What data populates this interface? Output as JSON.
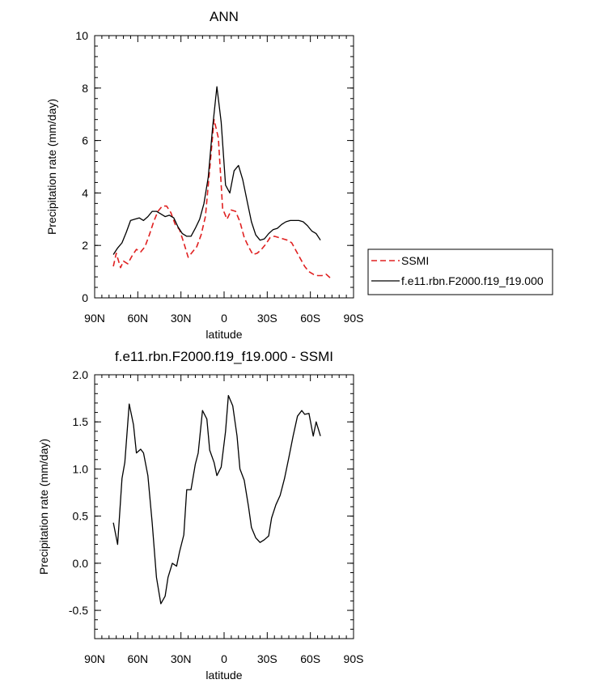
{
  "chart_data": [
    {
      "type": "line",
      "title": "ANN",
      "xlabel": "latitude",
      "ylabel": "Precipitation rate (mm/day)",
      "xlim": [
        90,
        -90
      ],
      "ylim": [
        0,
        10
      ],
      "x_tick_labels": [
        "90N",
        "60N",
        "30N",
        "0",
        "30S",
        "60S",
        "90S"
      ],
      "y_tick_labels": [
        "0",
        "2",
        "4",
        "6",
        "8",
        "10"
      ],
      "legend": {
        "placement": "right",
        "entries": [
          "SSMI",
          "f.e11.rbn.F2000.f19_f19.000"
        ]
      },
      "series": [
        {
          "name": "SSMI",
          "color": "#e02020",
          "dash": "dashed",
          "x": [
            77,
            75,
            72,
            70,
            67,
            64,
            61,
            58,
            55,
            52,
            49,
            46,
            43,
            40,
            37,
            34,
            31,
            28,
            25,
            22,
            19,
            16,
            13,
            10,
            7,
            4,
            1,
            -2,
            -5,
            -8,
            -11,
            -14,
            -17,
            -20,
            -23,
            -26,
            -29,
            -32,
            -35,
            -38,
            -41,
            -44,
            -47,
            -50,
            -53,
            -56,
            -59,
            -62,
            -65,
            -68,
            -71,
            -74
          ],
          "values": [
            1.2,
            1.7,
            1.15,
            1.4,
            1.3,
            1.6,
            1.85,
            1.75,
            1.95,
            2.4,
            2.9,
            3.3,
            3.5,
            3.5,
            3.25,
            2.8,
            2.6,
            2.1,
            1.55,
            1.75,
            1.95,
            2.4,
            3.1,
            4.9,
            6.8,
            6.1,
            3.4,
            3.0,
            3.35,
            3.3,
            2.9,
            2.3,
            1.95,
            1.65,
            1.7,
            1.85,
            2.05,
            2.3,
            2.35,
            2.3,
            2.25,
            2.2,
            2.1,
            1.8,
            1.5,
            1.2,
            1.0,
            0.9,
            0.85,
            0.85,
            0.9,
            0.75
          ]
        },
        {
          "name": "f.e11.rbn.F2000.f19_f19.000",
          "color": "#000000",
          "dash": "solid",
          "x": [
            77,
            74,
            71,
            68,
            65,
            62,
            59,
            56,
            53,
            50,
            47,
            44,
            41,
            38,
            35,
            32,
            29,
            26,
            23,
            20,
            17,
            14,
            11,
            8,
            5,
            2,
            -1,
            -4,
            -7,
            -10,
            -13,
            -16,
            -19,
            -22,
            -25,
            -28,
            -31,
            -34,
            -37,
            -40,
            -43,
            -46,
            -49,
            -52,
            -55,
            -58,
            -61,
            -64,
            -67
          ],
          "values": [
            1.65,
            1.9,
            2.1,
            2.5,
            2.95,
            3.0,
            3.05,
            2.95,
            3.1,
            3.3,
            3.3,
            3.2,
            3.1,
            3.15,
            3.05,
            2.7,
            2.45,
            2.35,
            2.35,
            2.65,
            3.0,
            3.6,
            4.6,
            6.5,
            8.05,
            6.7,
            4.3,
            4.0,
            4.85,
            5.05,
            4.5,
            3.7,
            2.9,
            2.4,
            2.2,
            2.25,
            2.45,
            2.6,
            2.65,
            2.8,
            2.9,
            2.95,
            2.95,
            2.95,
            2.9,
            2.75,
            2.55,
            2.45,
            2.2
          ]
        }
      ]
    },
    {
      "type": "line",
      "title": "f.e11.rbn.F2000.f19_f19.000 - SSMI",
      "xlabel": "latitude",
      "ylabel": "Precipitation rate (mm/day)",
      "xlim": [
        90,
        -90
      ],
      "ylim": [
        -0.8,
        2.0
      ],
      "x_tick_labels": [
        "90N",
        "60N",
        "30N",
        "0",
        "30S",
        "60S",
        "90S"
      ],
      "y_tick_labels": [
        "2.0",
        "1.5",
        "1.0",
        "0.5",
        "0.0",
        "-0.5"
      ],
      "series": [
        {
          "color": "#000000",
          "dash": "solid",
          "x": [
            77,
            74,
            71,
            69,
            66,
            63,
            61,
            58,
            56,
            53,
            50,
            47,
            44,
            41,
            39,
            36,
            33,
            31,
            28,
            26,
            23,
            20,
            18,
            15,
            12,
            10,
            7,
            5,
            2,
            -1,
            -3,
            -6,
            -9,
            -11,
            -14,
            -17,
            -19,
            -22,
            -25,
            -28,
            -31,
            -33,
            -36,
            -39,
            -42,
            -45,
            -48,
            -51,
            -54,
            -56,
            -59,
            -62,
            -64,
            -67
          ],
          "values": [
            0.43,
            0.2,
            0.9,
            1.07,
            1.69,
            1.47,
            1.17,
            1.21,
            1.17,
            0.93,
            0.43,
            -0.15,
            -0.43,
            -0.35,
            -0.15,
            0.0,
            -0.03,
            0.12,
            0.3,
            0.78,
            0.78,
            1.05,
            1.17,
            1.62,
            1.53,
            1.2,
            1.07,
            0.93,
            1.02,
            1.4,
            1.78,
            1.67,
            1.35,
            1.0,
            0.88,
            0.6,
            0.38,
            0.27,
            0.22,
            0.25,
            0.29,
            0.48,
            0.62,
            0.72,
            0.9,
            1.12,
            1.35,
            1.56,
            1.62,
            1.58,
            1.59,
            1.35,
            1.5,
            1.35
          ]
        }
      ]
    }
  ]
}
